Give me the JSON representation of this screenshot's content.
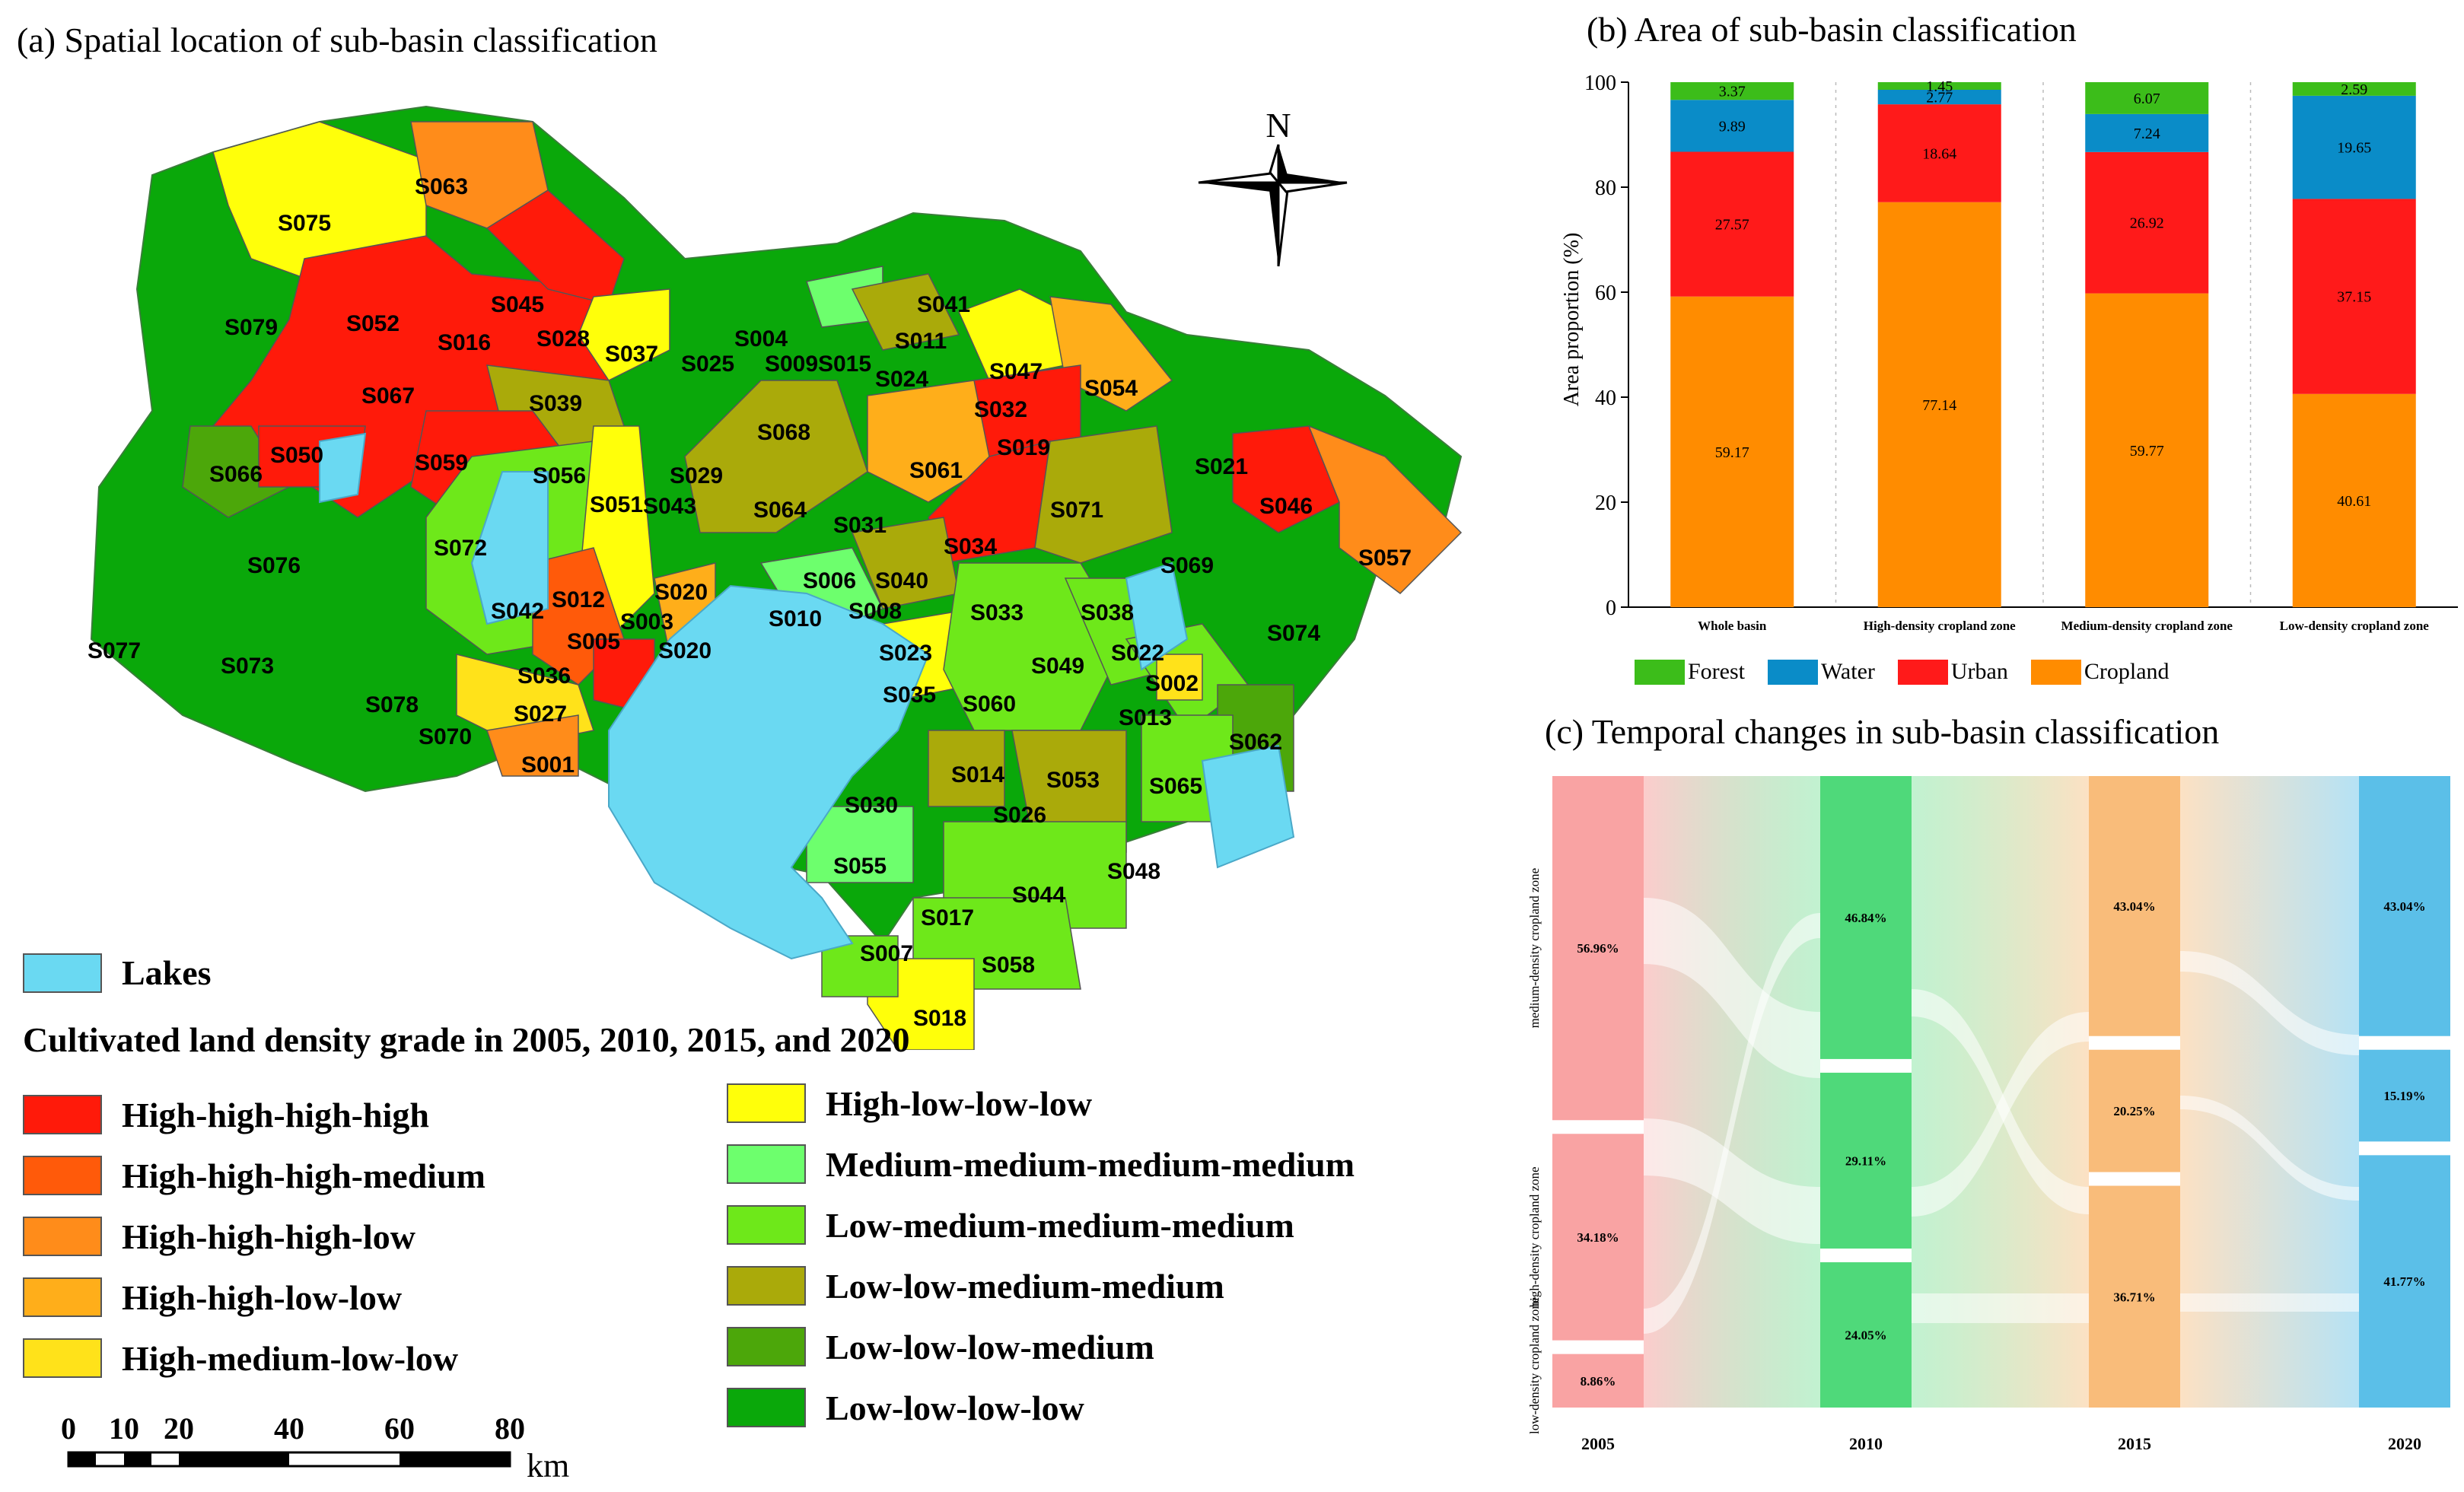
{
  "panel_a": {
    "title": "(a) Spatial location of sub-basin classification",
    "north_label": "N",
    "lakes_label": "Lakes",
    "legend_title": "Cultivated land density grade in 2005, 2010, 2015, and 2020",
    "legend_left": [
      {
        "label": "High-high-high-high",
        "color": "#ff1a0a"
      },
      {
        "label": "High-high-high-medium",
        "color": "#ff5a0a"
      },
      {
        "label": "High-high-high-low",
        "color": "#ff8c1a"
      },
      {
        "label": "High-high-low-low",
        "color": "#ffae1a"
      },
      {
        "label": "High-medium-low-low",
        "color": "#ffe21a"
      }
    ],
    "legend_right": [
      {
        "label": "High-low-low-low",
        "color": "#ffff0a"
      },
      {
        "label": "Medium-medium-medium-medium",
        "color": "#6dff6d"
      },
      {
        "label": "Low-medium-medium-medium",
        "color": "#6ee81a"
      },
      {
        "label": "Low-low-medium-medium",
        "color": "#aaaa0a"
      },
      {
        "label": "Low-low-low-medium",
        "color": "#4ca70a"
      },
      {
        "label": "Low-low-low-low",
        "color": "#0aa80a"
      }
    ],
    "lake_color": "#6ad9f2",
    "scale": {
      "ticks": [
        "0",
        "10",
        "20",
        "40",
        "60",
        "80"
      ],
      "unit": "km"
    },
    "subbasins": [
      {
        "id": "S075"
      },
      {
        "id": "S063"
      },
      {
        "id": "S079"
      },
      {
        "id": "S052"
      },
      {
        "id": "S045"
      },
      {
        "id": "S016"
      },
      {
        "id": "S028"
      },
      {
        "id": "S037"
      },
      {
        "id": "S067"
      },
      {
        "id": "S039"
      },
      {
        "id": "S004"
      },
      {
        "id": "S025"
      },
      {
        "id": "S009"
      },
      {
        "id": "S015"
      },
      {
        "id": "S041"
      },
      {
        "id": "S011"
      },
      {
        "id": "S024"
      },
      {
        "id": "S047"
      },
      {
        "id": "S054"
      },
      {
        "id": "S032"
      },
      {
        "id": "S068"
      },
      {
        "id": "S050"
      },
      {
        "id": "S059"
      },
      {
        "id": "S066"
      },
      {
        "id": "S056"
      },
      {
        "id": "S029"
      },
      {
        "id": "S019"
      },
      {
        "id": "S061"
      },
      {
        "id": "S021"
      },
      {
        "id": "S051"
      },
      {
        "id": "S043"
      },
      {
        "id": "S064"
      },
      {
        "id": "S071"
      },
      {
        "id": "S046"
      },
      {
        "id": "S076"
      },
      {
        "id": "S072"
      },
      {
        "id": "S031"
      },
      {
        "id": "S034"
      },
      {
        "id": "S057"
      },
      {
        "id": "S069"
      },
      {
        "id": "S006"
      },
      {
        "id": "S040"
      },
      {
        "id": "S012"
      },
      {
        "id": "S020"
      },
      {
        "id": "S042"
      },
      {
        "id": "S003"
      },
      {
        "id": "S010"
      },
      {
        "id": "S008"
      },
      {
        "id": "S033"
      },
      {
        "id": "S038"
      },
      {
        "id": "S005"
      },
      {
        "id": "S077"
      },
      {
        "id": "S074"
      },
      {
        "id": "S073"
      },
      {
        "id": "S020"
      },
      {
        "id": "S023"
      },
      {
        "id": "S022"
      },
      {
        "id": "S049"
      },
      {
        "id": "S036"
      },
      {
        "id": "S002"
      },
      {
        "id": "S035"
      },
      {
        "id": "S078"
      },
      {
        "id": "S060"
      },
      {
        "id": "S013"
      },
      {
        "id": "S027"
      },
      {
        "id": "S062"
      },
      {
        "id": "S070"
      },
      {
        "id": "S001"
      },
      {
        "id": "S014"
      },
      {
        "id": "S053"
      },
      {
        "id": "S065"
      },
      {
        "id": "S030"
      },
      {
        "id": "S026"
      },
      {
        "id": "S055"
      },
      {
        "id": "S048"
      },
      {
        "id": "S044"
      },
      {
        "id": "S017"
      },
      {
        "id": "S007"
      },
      {
        "id": "S058"
      },
      {
        "id": "S018"
      }
    ]
  },
  "chart_data": [
    {
      "type": "bar",
      "title": "(b) Area of sub-basin classification",
      "ylabel": "Area proportion (%)",
      "ylim": [
        0,
        100
      ],
      "yticks": [
        "0",
        "20",
        "40",
        "60",
        "80",
        "100"
      ],
      "stacked": true,
      "categories": [
        "Whole basin",
        "High-density cropland  zone",
        "Medium-density cropland  zone",
        "Low-density cropland  zone"
      ],
      "series": [
        {
          "name": "Cropland",
          "color": "#ff8c00",
          "values": [
            59.17,
            77.14,
            59.77,
            40.61
          ],
          "labels": [
            "59.17",
            "77.14",
            "59.77",
            "40.61"
          ]
        },
        {
          "name": "Urban",
          "color": "#ff1a1a",
          "values": [
            27.57,
            18.64,
            26.92,
            37.15
          ],
          "labels": [
            "27.57",
            "18.64",
            "26.92",
            "37.15"
          ]
        },
        {
          "name": "Water",
          "color": "#0a8cc8",
          "values": [
            9.89,
            2.77,
            7.24,
            19.65
          ],
          "labels": [
            "9.89",
            "2.77",
            "7.24",
            "19.65"
          ]
        },
        {
          "name": "Forest",
          "color": "#3cbd1a",
          "values": [
            3.37,
            1.45,
            6.07,
            2.59
          ],
          "labels": [
            "3.37",
            "1.45",
            "6.07",
            "2.59"
          ]
        }
      ],
      "legend_order": [
        "Forest",
        "Water",
        "Urban",
        "Cropland"
      ]
    },
    {
      "type": "sankey",
      "title": "(c) Temporal changes in sub-basin classification",
      "years": [
        "2005",
        "2010",
        "2015",
        "2020"
      ],
      "year_colors": [
        "#f9a3a3",
        "#4fd97a",
        "#f9bc7a",
        "#5bbfe8"
      ],
      "zones_order": [
        "medium-density cropland zone",
        "high-density cropland zone",
        "low-density cropland zone"
      ],
      "zone_axis_labels": [
        "medium-density cropland zone",
        "high-density cropland zone",
        "low-density cropland zone"
      ],
      "nodes": {
        "2005": [
          56.96,
          34.18,
          8.86
        ],
        "2010": [
          46.84,
          29.11,
          24.05
        ],
        "2015": [
          43.04,
          20.25,
          36.71
        ],
        "2020": [
          43.04,
          15.19,
          41.77
        ]
      },
      "node_labels": {
        "2005": [
          "56.96%",
          "34.18%",
          "8.86%"
        ],
        "2010": [
          "46.84%",
          "29.11%",
          "24.05%"
        ],
        "2015": [
          "43.04%",
          "20.25%",
          "36.71%"
        ],
        "2020": [
          "43.04%",
          "15.19%",
          "41.77%"
        ]
      }
    }
  ]
}
